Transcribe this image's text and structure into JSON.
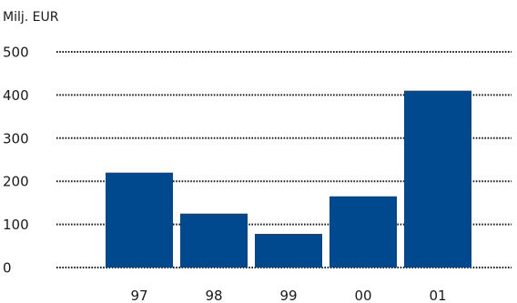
{
  "chart_data": {
    "type": "bar",
    "ylabel": "Milj. EUR",
    "categories": [
      "97",
      "98",
      "99",
      "00",
      "01"
    ],
    "values": [
      220,
      125,
      78,
      165,
      410
    ],
    "ylim": [
      0,
      500
    ],
    "yticks": [
      0,
      100,
      200,
      300,
      400,
      500
    ],
    "ytick_labels": [
      "0",
      "100",
      "200",
      "300",
      "400",
      "500"
    ],
    "grid": true,
    "grid_style": "dotted",
    "legend": "none",
    "bar_color": "#00498f",
    "grid_color": "#1a1a1a"
  }
}
